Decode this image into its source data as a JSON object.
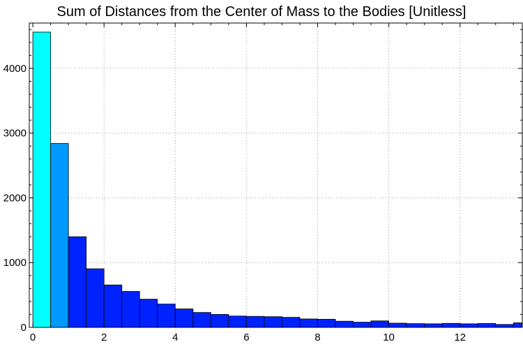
{
  "chart_data": {
    "type": "bar",
    "title": "Sum of Distances from the Center of Mass to the Bodies [Unitless]",
    "xlabel": "",
    "ylabel": "",
    "bin_width": 0.5,
    "bin_start": 0,
    "values": [
      4560,
      2840,
      1400,
      905,
      655,
      555,
      435,
      360,
      285,
      230,
      200,
      175,
      170,
      165,
      155,
      130,
      125,
      95,
      80,
      100,
      65,
      58,
      55,
      62,
      55,
      60,
      45,
      70
    ],
    "xlim": [
      -0.1,
      13.75
    ],
    "ylim": [
      0,
      4700
    ],
    "x_ticks": [
      0,
      2,
      4,
      6,
      8,
      10,
      12
    ],
    "y_ticks": [
      0,
      1000,
      2000,
      3000,
      4000
    ],
    "grid": true,
    "colors": {
      "bar_start": "#00ffff",
      "bar_mid": "#0099ff",
      "bar_end": "#0022ff",
      "bar_stroke": "#000000",
      "grid": "#9a9a9a"
    }
  }
}
